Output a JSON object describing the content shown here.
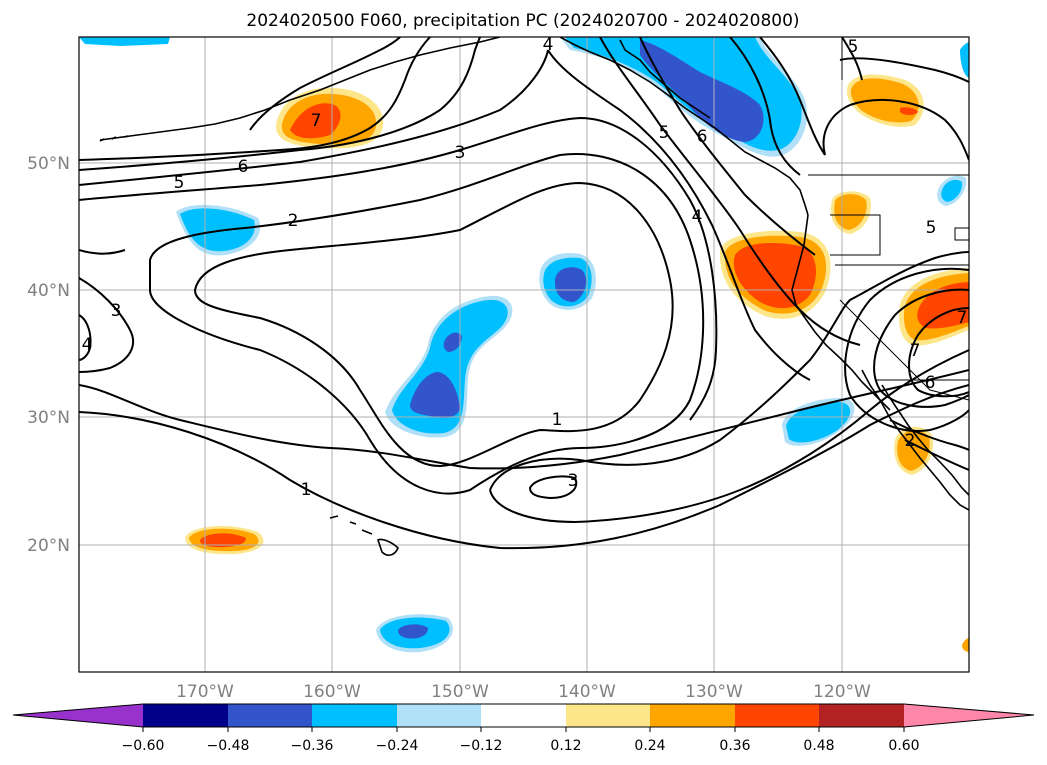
{
  "title": "2024020500 F060, precipitation PC (2024020700 - 2024020800)",
  "map": {
    "lat_labels": [
      "50°N",
      "40°N",
      "30°N",
      "20°N"
    ],
    "lon_labels": [
      "170°W",
      "160°W",
      "150°W",
      "140°W",
      "130°W",
      "120°W"
    ],
    "contour_labels": [
      "1",
      "1",
      "2",
      "3",
      "3",
      "3",
      "4",
      "4",
      "4",
      "5",
      "5",
      "5",
      "5",
      "6",
      "6",
      "6",
      "7",
      "7",
      "7",
      "2"
    ]
  },
  "colorbar": {
    "ticks": [
      "−0.60",
      "−0.48",
      "−0.36",
      "−0.24",
      "−0.12",
      "0.12",
      "0.24",
      "0.36",
      "0.48",
      "0.60"
    ],
    "colors": [
      "#9932cc",
      "#00008b",
      "#3355cc",
      "#00bfff",
      "#b0e0f8",
      "#ffffff",
      "#fde68a",
      "#ffa500",
      "#ff4500",
      "#b22222",
      "#ff88aa"
    ]
  }
}
